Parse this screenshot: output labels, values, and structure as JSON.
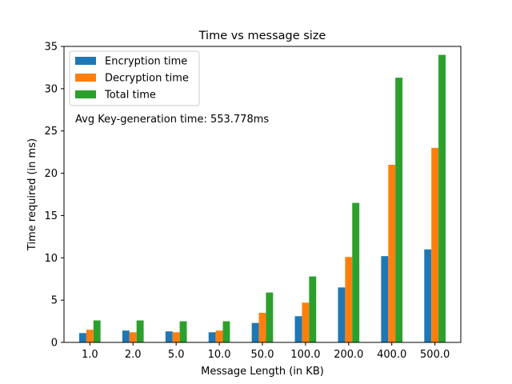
{
  "chart_data": {
    "type": "bar",
    "title": "Time vs message size",
    "xlabel": "Message Length (in KB)",
    "ylabel": "Time required (in ms)",
    "categories": [
      "1.0",
      "2.0",
      "5.0",
      "10.0",
      "50.0",
      "100.0",
      "200.0",
      "400.0",
      "500.0"
    ],
    "ylim": [
      0,
      35
    ],
    "yticks": [
      0,
      5,
      10,
      15,
      20,
      25,
      30,
      35
    ],
    "grid": false,
    "legend_position": "top-left",
    "series": [
      {
        "name": "Encryption time",
        "color": "#1f77b4",
        "values": [
          1.1,
          1.4,
          1.3,
          1.2,
          2.3,
          3.1,
          6.5,
          10.2,
          11.0
        ]
      },
      {
        "name": "Decryption time",
        "color": "#ff7f0e",
        "values": [
          1.5,
          1.2,
          1.2,
          1.4,
          3.5,
          4.7,
          10.1,
          21.0,
          23.0
        ]
      },
      {
        "name": "Total time",
        "color": "#2ca02c",
        "values": [
          2.6,
          2.6,
          2.5,
          2.5,
          5.9,
          7.8,
          16.5,
          31.3,
          34.0
        ]
      }
    ],
    "annotation": "Avg Key-generation time: 553.778ms"
  }
}
